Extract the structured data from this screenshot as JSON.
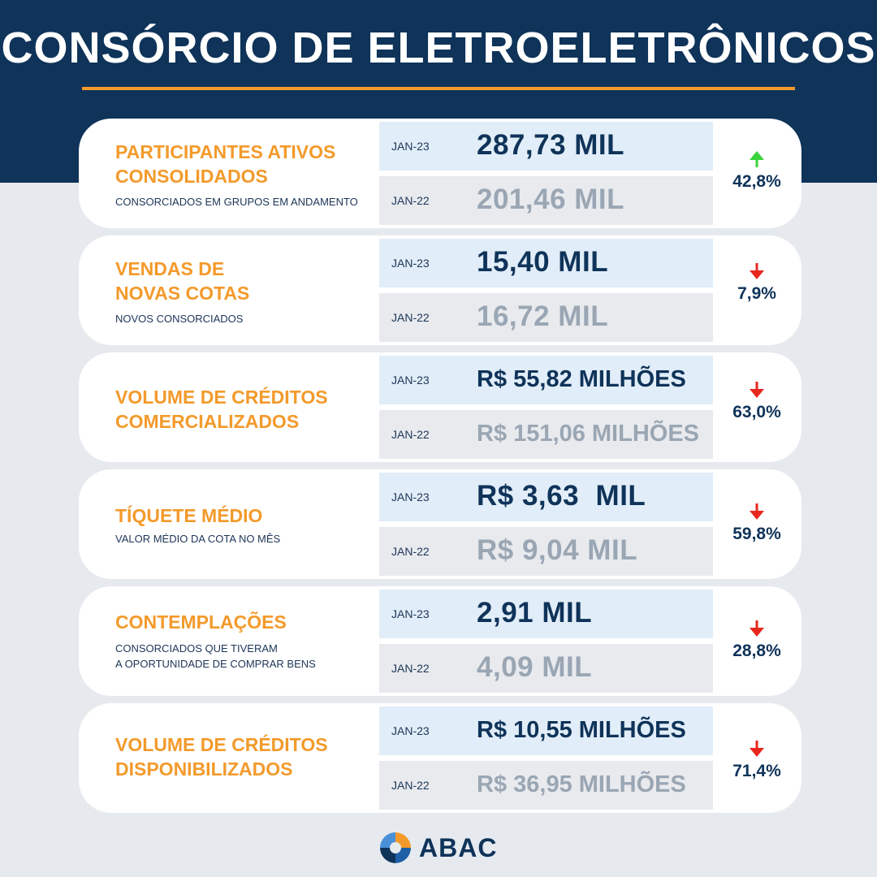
{
  "header": {
    "title": "CONSÓRCIO DE ELETROELETRÔNICOS"
  },
  "colors": {
    "navy": "#0f3359",
    "orange": "#f39a2b",
    "up": "#3bd33b",
    "down": "#e8281e"
  },
  "cards": [
    {
      "title": "PARTICIPANTES ATIVOS\nCONSOLIDADOS",
      "subtitle": "CONSORCIADOS EM GRUPOS EM ANDAMENTO",
      "current": {
        "period": "JAN-23",
        "value": "287,73 MIL"
      },
      "previous": {
        "period": "JAN-22",
        "value": "201,46 MIL"
      },
      "change": {
        "direction": "up",
        "value": "42,8%",
        "icon": "arrow-up-icon"
      }
    },
    {
      "title": "VENDAS DE\nNOVAS COTAS",
      "subtitle": "NOVOS CONSORCIADOS",
      "current": {
        "period": "JAN-23",
        "value": "15,40 MIL"
      },
      "previous": {
        "period": "JAN-22",
        "value": "16,72 MIL"
      },
      "change": {
        "direction": "down",
        "value": "7,9%",
        "icon": "arrow-down-icon"
      }
    },
    {
      "title": "VOLUME DE CRÉDITOS\nCOMERCIALIZADOS",
      "subtitle": "",
      "current": {
        "period": "JAN-23",
        "value": "R$ 55,82 MILHÕES"
      },
      "previous": {
        "period": "JAN-22",
        "value": "R$ 151,06 MILHÕES"
      },
      "change": {
        "direction": "down",
        "value": "63,0%",
        "icon": "arrow-down-icon"
      }
    },
    {
      "title": "TÍQUETE MÉDIO",
      "subtitle": "VALOR MÉDIO DA COTA NO MÊS",
      "current": {
        "period": "JAN-23",
        "value": "R$ 3,63  MIL"
      },
      "previous": {
        "period": "JAN-22",
        "value": "R$ 9,04 MIL"
      },
      "change": {
        "direction": "down",
        "value": "59,8%",
        "icon": "arrow-down-icon"
      }
    },
    {
      "title": "CONTEMPLAÇÕES",
      "subtitle": "CONSORCIADOS QUE TIVERAM\nA OPORTUNIDADE DE COMPRAR BENS",
      "current": {
        "period": "JAN-23",
        "value": "2,91 MIL"
      },
      "previous": {
        "period": "JAN-22",
        "value": "4,09 MIL"
      },
      "change": {
        "direction": "down",
        "value": "28,8%",
        "icon": "arrow-down-icon"
      }
    },
    {
      "title": "VOLUME DE CRÉDITOS\nDISPONIBILIZADOS",
      "subtitle": "",
      "current": {
        "period": "JAN-23",
        "value": "R$ 10,55 MILHÕES"
      },
      "previous": {
        "period": "JAN-22",
        "value": "R$ 36,95 MILHÕES"
      },
      "change": {
        "direction": "down",
        "value": "71,4%",
        "icon": "arrow-down-icon"
      }
    }
  ],
  "footer": {
    "logo_text": "ABAC",
    "logo_icon": "abac-logo-icon"
  }
}
